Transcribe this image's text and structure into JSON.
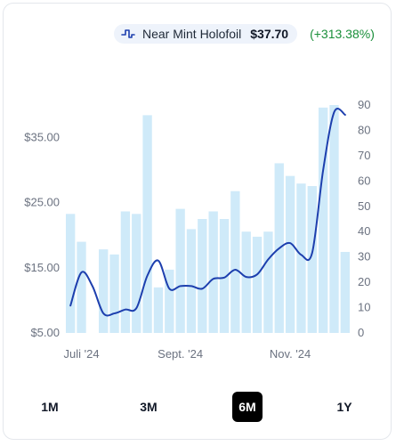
{
  "legend": {
    "icon": "pulse-line-icon",
    "name": "Near Mint Holofoil",
    "price": "$37.70",
    "change": "(+313.38%)"
  },
  "colors": {
    "bars": "#cfeaf9",
    "line": "#1d3fae",
    "change_positive": "#1a8f3a",
    "active_range_bg": "#000000"
  },
  "ranges": [
    {
      "label": "1M",
      "active": false
    },
    {
      "label": "3M",
      "active": false
    },
    {
      "label": "6M",
      "active": true
    },
    {
      "label": "1Y",
      "active": false
    }
  ],
  "chart_data": {
    "type": "bar+line",
    "left_axis": {
      "ticks": [
        "$5.00",
        "$15.00",
        "$25.00",
        "$35.00"
      ],
      "values": [
        5,
        15,
        25,
        35
      ],
      "range": [
        5,
        40
      ]
    },
    "right_axis": {
      "ticks": [
        "0",
        "10",
        "20",
        "30",
        "40",
        "50",
        "60",
        "70",
        "80",
        "90"
      ],
      "values": [
        0,
        10,
        20,
        30,
        40,
        50,
        60,
        70,
        80,
        90
      ],
      "range": [
        0,
        90
      ]
    },
    "x_ticks": [
      "Juli '24",
      "Sept. '24",
      "Nov. '24"
    ],
    "x_tick_bar_index": [
      1,
      10,
      20
    ],
    "series": [
      {
        "kind": "bar",
        "axis": "right",
        "values": [
          47,
          36,
          0,
          33,
          31,
          48,
          47,
          86,
          18,
          25,
          49,
          41,
          45,
          48,
          45,
          56,
          40,
          38,
          40,
          67,
          62,
          59,
          58,
          89,
          90,
          32
        ]
      },
      {
        "kind": "line",
        "axis": "left",
        "points": [
          [
            0,
            9.2
          ],
          [
            1,
            14.3
          ],
          [
            2,
            12.2
          ],
          [
            3,
            8.0
          ],
          [
            4,
            8.0
          ],
          [
            5,
            8.6
          ],
          [
            6,
            8.8
          ],
          [
            7,
            13.8
          ],
          [
            8,
            16.1
          ],
          [
            9,
            11.8
          ],
          [
            10,
            12.2
          ],
          [
            11,
            12.2
          ],
          [
            12,
            11.8
          ],
          [
            13,
            13.3
          ],
          [
            14,
            13.5
          ],
          [
            15,
            14.7
          ],
          [
            16,
            13.6
          ],
          [
            17,
            14.0
          ],
          [
            18,
            16.3
          ],
          [
            19,
            18.0
          ],
          [
            20,
            18.8
          ],
          [
            21,
            17.0
          ],
          [
            22,
            17.3
          ],
          [
            23,
            30.0
          ],
          [
            24,
            38.9
          ],
          [
            25,
            38.5
          ]
        ]
      }
    ]
  }
}
